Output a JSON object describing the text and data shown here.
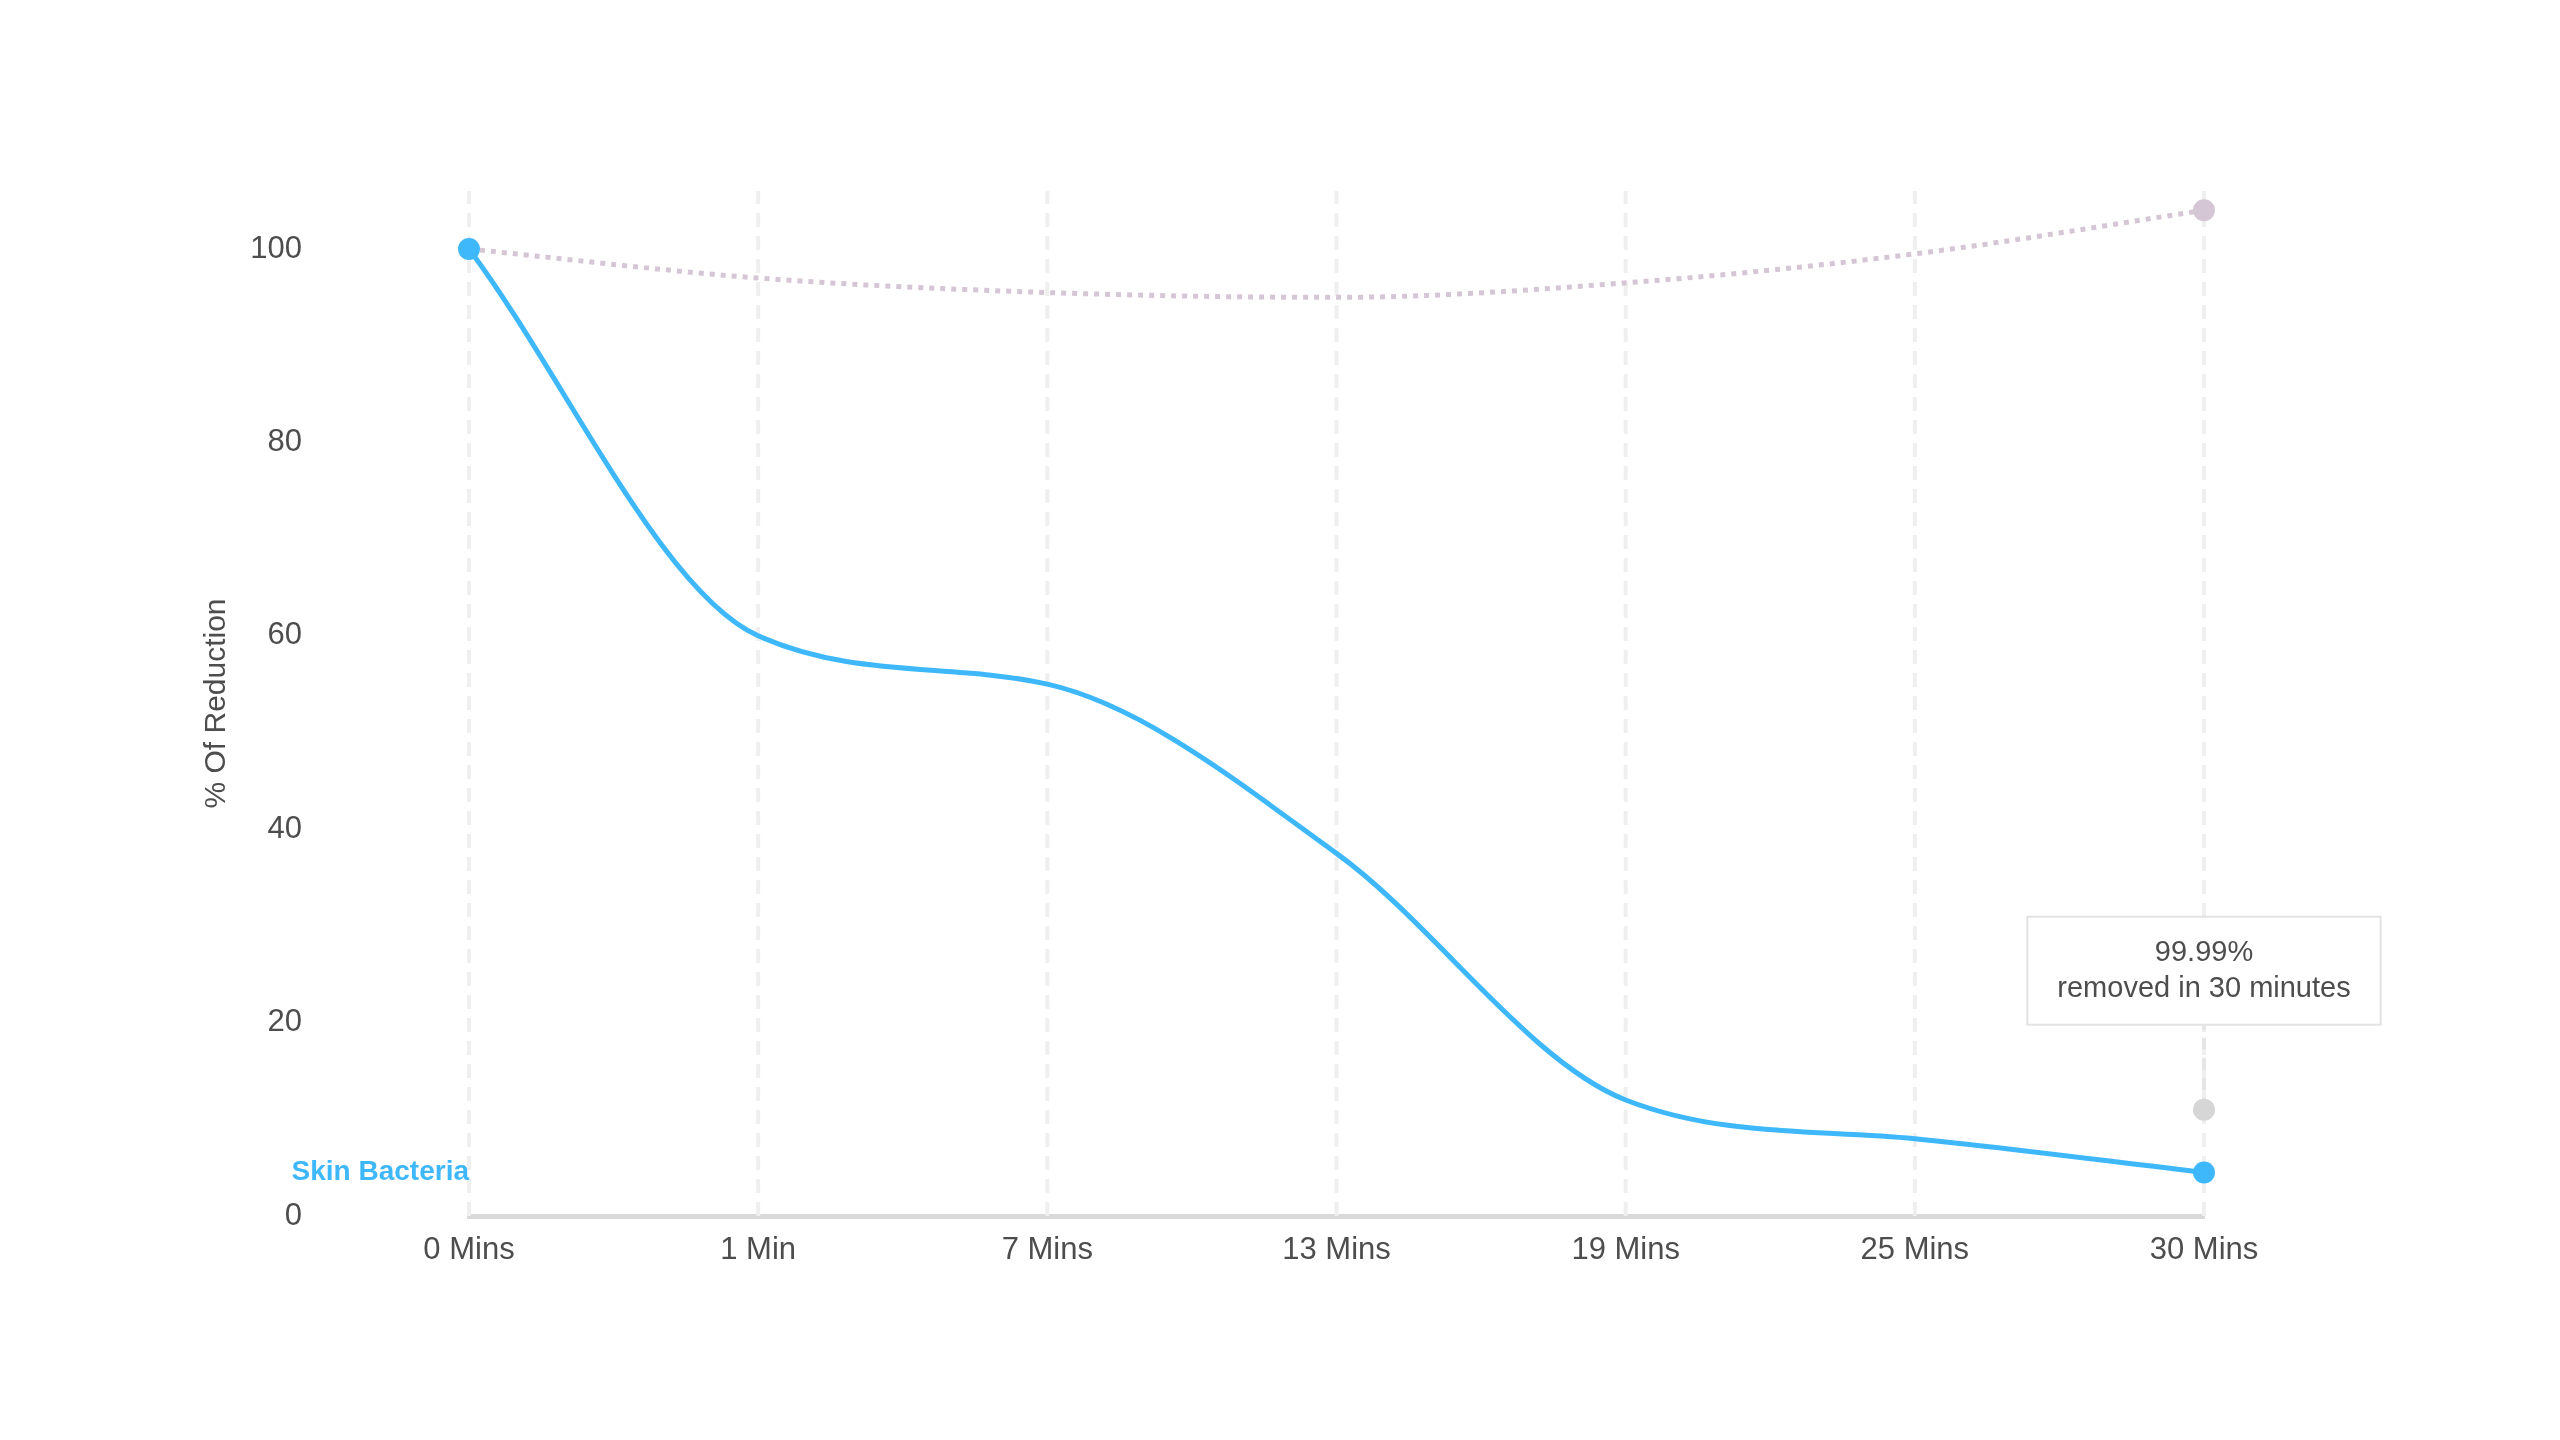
{
  "chart_data": {
    "type": "line",
    "ylabel": "% Of Reduction",
    "categories": [
      "0 Mins",
      "1 Min",
      "7 Mins",
      "13 Mins",
      "19 Mins",
      "25 Mins",
      "30 Mins"
    ],
    "series": [
      {
        "name": "Skin Bacteria",
        "color": "#3eb8fb",
        "values": [
          100,
          60,
          55,
          37.5,
          12,
          8,
          4.5
        ],
        "line_style": "solid"
      },
      {
        "color": "#d5c6d5",
        "values": [
          100,
          97,
          95.5,
          95,
          96.5,
          99.5,
          104
        ],
        "line_style": "dotted"
      },
      {
        "type": "scatter",
        "color": "#3eb8fb",
        "x": [
          "0 Mins",
          "30 Mins"
        ],
        "values": [
          100,
          4.5
        ],
        "marker": "circle"
      },
      {
        "type": "scatter",
        "color": "#d5c6d5",
        "x": [
          "30 Mins"
        ],
        "values": [
          104
        ],
        "marker": "circle"
      },
      {
        "type": "scatter",
        "color": "#d6d6d6",
        "x": [
          "30 Mins"
        ],
        "values": [
          11
        ],
        "marker": "circle"
      }
    ],
    "ylim": [
      0,
      106
    ],
    "yticks": [
      0,
      20,
      40,
      60,
      80,
      100
    ],
    "grid": "x",
    "annotations": [
      {
        "text": "99.99%\nremoved in 30 minutes",
        "x": "30 Mins",
        "y": 11
      }
    ]
  }
}
